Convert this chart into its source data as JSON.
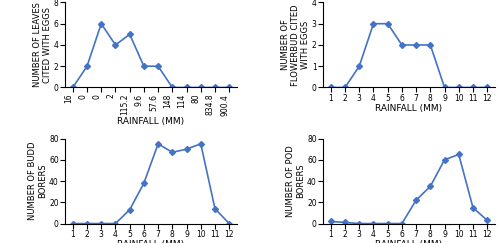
{
  "top_left": {
    "x_labels": [
      "16",
      "0",
      "0",
      "2",
      "115.2",
      "9.6",
      "57.6",
      "148",
      "114",
      "80",
      "834.8",
      "900.4"
    ],
    "y_values": [
      0,
      2,
      6,
      4,
      5,
      2,
      2,
      0,
      0,
      0,
      0,
      0
    ],
    "ylabel": "NUMBER OF LEAVES\nCITED WITH EGGS",
    "xlabel": "RAINFALL (MM)",
    "ylim": [
      0,
      8
    ],
    "yticks": [
      0,
      2,
      4,
      6,
      8
    ],
    "xtick_rotation": 90
  },
  "top_right": {
    "x_labels": [
      "1",
      "2",
      "3",
      "4",
      "5",
      "6",
      "7",
      "8",
      "9",
      "10",
      "11",
      "12"
    ],
    "y_values": [
      0,
      0,
      1,
      3,
      3,
      2,
      2,
      2,
      0,
      0,
      0,
      0
    ],
    "ylabel": "NUMBER OF\nFLOWERBUD CITED\nWITH EGGS",
    "xlabel": "RAINFALL (MM)",
    "ylim": [
      0,
      4
    ],
    "yticks": [
      0,
      1,
      2,
      3,
      4
    ],
    "xtick_rotation": 0
  },
  "bottom_left": {
    "x_labels": [
      "1",
      "2",
      "3",
      "4",
      "5",
      "6",
      "7",
      "8",
      "9",
      "10",
      "11",
      "12"
    ],
    "y_values": [
      0,
      0,
      0,
      0,
      13,
      38,
      75,
      67,
      70,
      75,
      14,
      0
    ],
    "ylabel": "NUMBER OF BUDD\nBORERS",
    "xlabel": "RAINFALL (MM)",
    "ylim": [
      0,
      80
    ],
    "yticks": [
      0,
      20,
      40,
      60,
      80
    ],
    "xtick_rotation": 0
  },
  "bottom_right": {
    "x_labels": [
      "1",
      "2",
      "3",
      "4",
      "5",
      "6",
      "7",
      "8",
      "9",
      "10",
      "11",
      "12"
    ],
    "y_values": [
      2,
      1,
      0,
      0,
      0,
      0,
      22,
      35,
      60,
      65,
      15,
      3
    ],
    "ylabel": "NUMBER OF POD\nBORERS",
    "xlabel": "RAINFALL (MM)",
    "ylim": [
      0,
      80
    ],
    "yticks": [
      0,
      20,
      40,
      60,
      80
    ],
    "xtick_rotation": 0
  },
  "line_color": "#4472C4",
  "marker": "D",
  "marker_size": 3,
  "line_width": 1.2,
  "xlabel_fontsize": 6.5,
  "ylabel_fontsize": 6,
  "tick_fontsize": 5.5
}
